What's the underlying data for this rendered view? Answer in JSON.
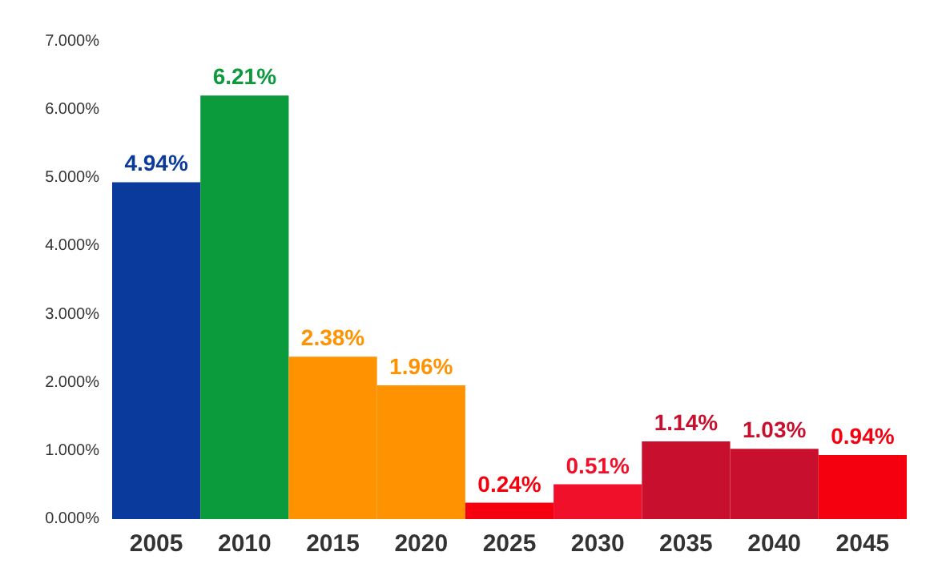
{
  "chart_data": {
    "type": "bar",
    "categories": [
      "2005",
      "2010",
      "2015",
      "2020",
      "2025",
      "2030",
      "2035",
      "2040",
      "2045"
    ],
    "values": [
      4.94,
      6.21,
      2.38,
      1.96,
      0.24,
      0.51,
      1.14,
      1.03,
      0.94
    ],
    "colors": [
      "#0a3a9c",
      "#0b9a3c",
      "#ff9200",
      "#ff9200",
      "#f5000f",
      "#f0102a",
      "#c8102e",
      "#c8102e",
      "#f5000f"
    ],
    "value_labels": [
      "4.94%",
      "6.21%",
      "2.38%",
      "1.96%",
      "0.24%",
      "0.51%",
      "1.14%",
      "1.03%",
      "0.94%"
    ],
    "ylim": [
      0,
      7
    ],
    "yticks": [
      {
        "value": 0,
        "label": "0.000%"
      },
      {
        "value": 1,
        "label": "1.000%"
      },
      {
        "value": 2,
        "label": "2.000%"
      },
      {
        "value": 3,
        "label": "3.000%"
      },
      {
        "value": 4,
        "label": "4.000%"
      },
      {
        "value": 5,
        "label": "5.000%"
      },
      {
        "value": 6,
        "label": "6.000%"
      },
      {
        "value": 7,
        "label": "7.000%"
      }
    ],
    "grid": false
  }
}
